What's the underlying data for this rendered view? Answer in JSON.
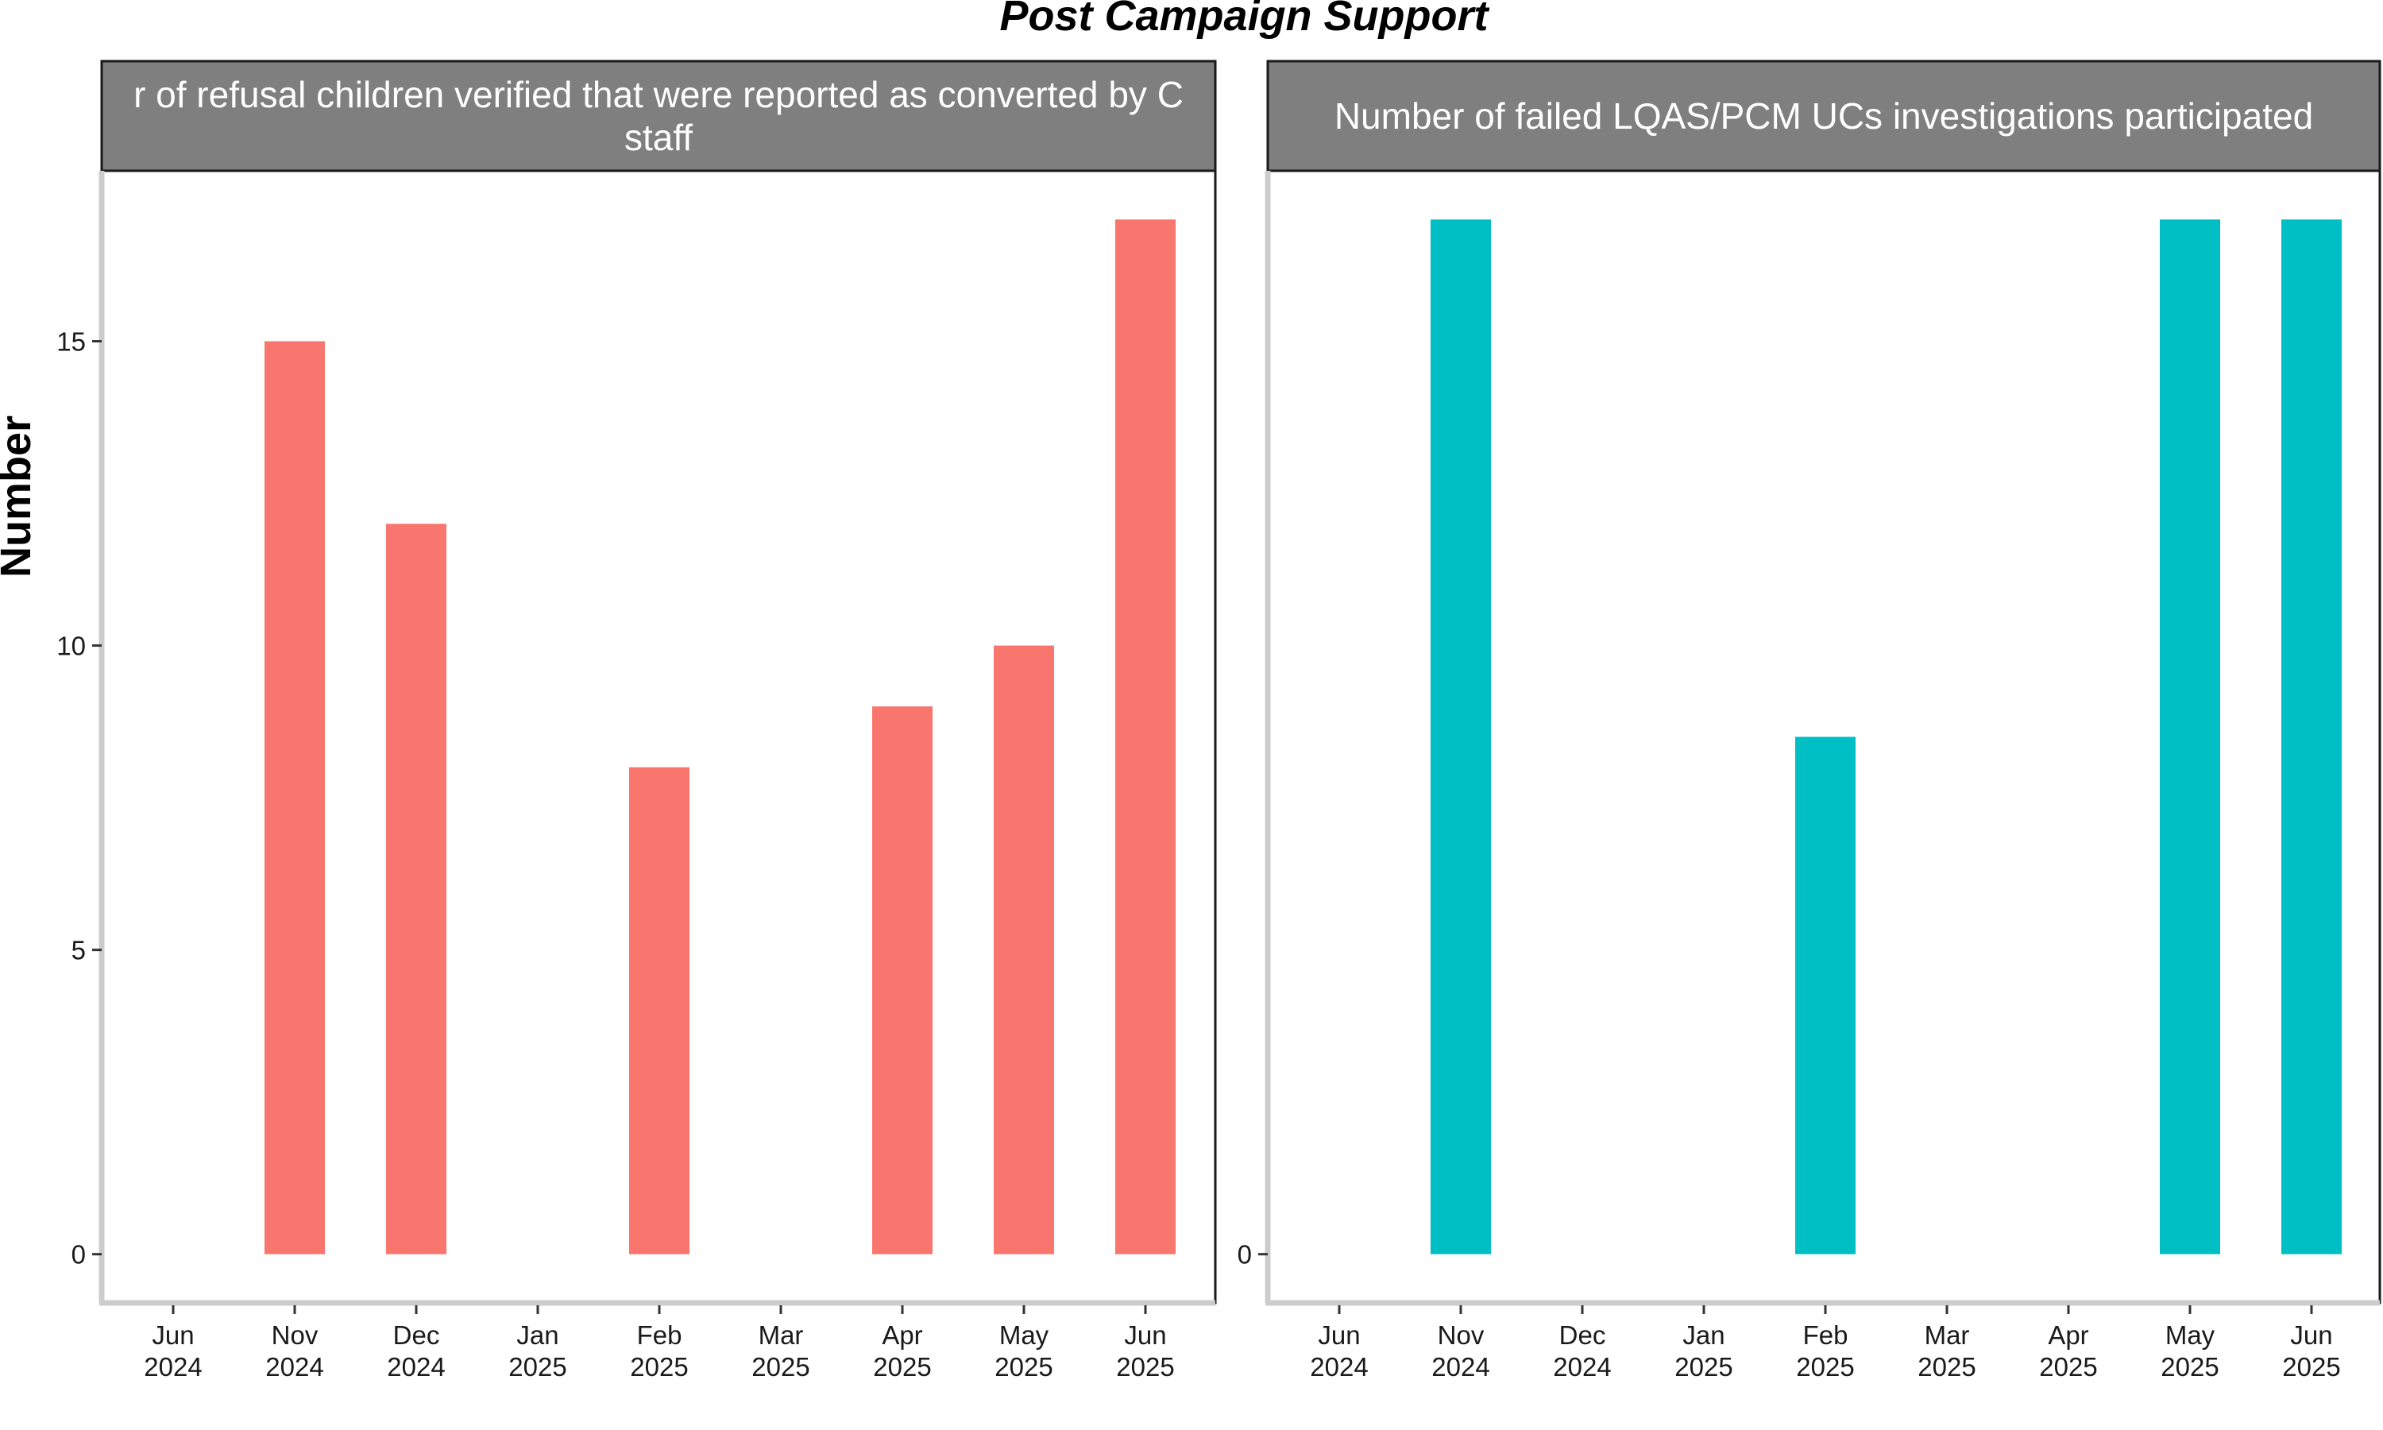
{
  "chart_data": {
    "type": "bar",
    "title": "Post Campaign Support",
    "ylabel": "Number",
    "xlabel": "",
    "colors": {
      "strip_fill": "#7f7f7f",
      "axis_line": "#cccccc",
      "panel_border": "#1a1a1a"
    },
    "panels": [
      {
        "strip_lines": [
          "r of refusal children verified that were reported as converted by C",
          "staff"
        ],
        "color": "#f8766d",
        "ylim": [
          -0.8,
          17.8
        ],
        "yticks": [
          0,
          5,
          10,
          15
        ],
        "x_ticks": [
          {
            "month": "Jun",
            "year": "2024"
          },
          {
            "month": "Nov",
            "year": "2024"
          },
          {
            "month": "Dec",
            "year": "2024"
          },
          {
            "month": "Jan",
            "year": "2025"
          },
          {
            "month": "Feb",
            "year": "2025"
          },
          {
            "month": "Mar",
            "year": "2025"
          },
          {
            "month": "Apr",
            "year": "2025"
          },
          {
            "month": "May",
            "year": "2025"
          },
          {
            "month": "Jun",
            "year": "2025"
          }
        ],
        "bars": [
          {
            "at": "Nov 2024",
            "value": 15
          },
          {
            "at": "Dec 2024",
            "value": 12
          },
          {
            "at": "Feb 2025",
            "value": 8
          },
          {
            "at": "Apr 2025",
            "value": 9
          },
          {
            "at": "May 2025",
            "value": 10
          },
          {
            "at": "Jun 2025",
            "value": 17
          }
        ]
      },
      {
        "strip_lines": [
          "Number of failed LQAS/PCM UCs investigations participated"
        ],
        "color": "#00bfc4",
        "ylim": [
          -0.8,
          17.8
        ],
        "yticks": [
          0
        ],
        "x_ticks": [
          {
            "month": "Jun",
            "year": "2024"
          },
          {
            "month": "Nov",
            "year": "2024"
          },
          {
            "month": "Dec",
            "year": "2024"
          },
          {
            "month": "Jan",
            "year": "2025"
          },
          {
            "month": "Feb",
            "year": "2025"
          },
          {
            "month": "Mar",
            "year": "2025"
          },
          {
            "month": "Apr",
            "year": "2025"
          },
          {
            "month": "May",
            "year": "2025"
          },
          {
            "month": "Jun",
            "year": "2025"
          }
        ],
        "bars": [
          {
            "at": "Nov 2024",
            "value": 17
          },
          {
            "at": "Feb 2025",
            "value": 8.5
          },
          {
            "at": "May 2025",
            "value": 17
          },
          {
            "at": "Jun 2025",
            "value": 17
          }
        ]
      }
    ]
  }
}
